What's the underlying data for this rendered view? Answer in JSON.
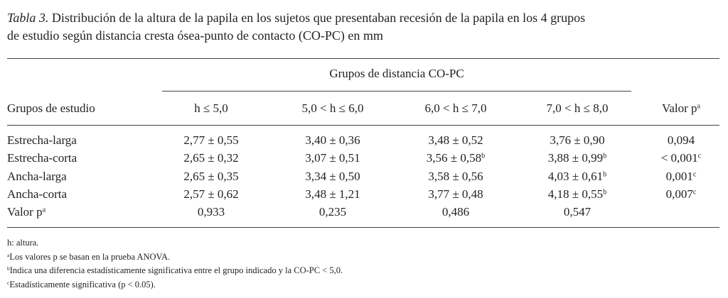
{
  "caption": {
    "label": "Tabla 3.",
    "lines": [
      "Distribución de la altura de la papila en los sujetos que presentaban recesión de la papila en los 4 grupos",
      "de estudio según distancia cresta ósea-punto de contacto (CO-PC) en mm"
    ]
  },
  "table": {
    "group_header": "Grupos de distancia CO-PC",
    "header": [
      {
        "text": "Grupos de estudio"
      },
      {
        "text": "h ≤ 5,0"
      },
      {
        "text": "5,0 < h ≤ 6,0"
      },
      {
        "text": "6,0 < h ≤ 7,0"
      },
      {
        "text": "7,0 < h ≤ 8,0"
      },
      {
        "text": "Valor p",
        "sup": "a"
      }
    ],
    "rows": [
      [
        {
          "text": "Estrecha-larga"
        },
        {
          "text": "2,77 ± 0,55"
        },
        {
          "text": "3,40 ± 0,36"
        },
        {
          "text": "3,48 ± 0,52"
        },
        {
          "text": "3,76 ± 0,90"
        },
        {
          "text": "0,094"
        }
      ],
      [
        {
          "text": "Estrecha-corta"
        },
        {
          "text": "2,65 ± 0,32"
        },
        {
          "text": "3,07 ± 0,51"
        },
        {
          "text": "3,56 ± 0,58",
          "sup": "b"
        },
        {
          "text": "3,88 ± 0,99",
          "sup": "b"
        },
        {
          "text": "< 0,001",
          "sup": "c"
        }
      ],
      [
        {
          "text": "Ancha-larga"
        },
        {
          "text": "2,65 ± 0,35"
        },
        {
          "text": "3,34 ± 0,50"
        },
        {
          "text": "3,58 ± 0,56"
        },
        {
          "text": "4,03 ± 0,61",
          "sup": "b"
        },
        {
          "text": "0,001",
          "sup": "c"
        }
      ],
      [
        {
          "text": "Ancha-corta"
        },
        {
          "text": "2,57 ± 0,62"
        },
        {
          "text": "3,48 ± 1,21"
        },
        {
          "text": "3,77 ± 0,48"
        },
        {
          "text": "4,18 ± 0,55",
          "sup": "b"
        },
        {
          "text": "0,007",
          "sup": "c"
        }
      ],
      [
        {
          "text": "Valor p",
          "sup": "a"
        },
        {
          "text": "0,933"
        },
        {
          "text": "0,235"
        },
        {
          "text": "0,486"
        },
        {
          "text": "0,547"
        }
      ]
    ]
  },
  "footnotes": [
    {
      "text": "h: altura."
    },
    {
      "sup": "a",
      "text": "Los valores p se basan en la prueba ANOVA."
    },
    {
      "sup": "b",
      "text": "Indica una diferencia estadísticamente significativa entre el grupo indicado y la CO-PC < 5,0."
    },
    {
      "sup": "c",
      "text": "Estadísticamente significativa (p < 0.05)."
    }
  ]
}
